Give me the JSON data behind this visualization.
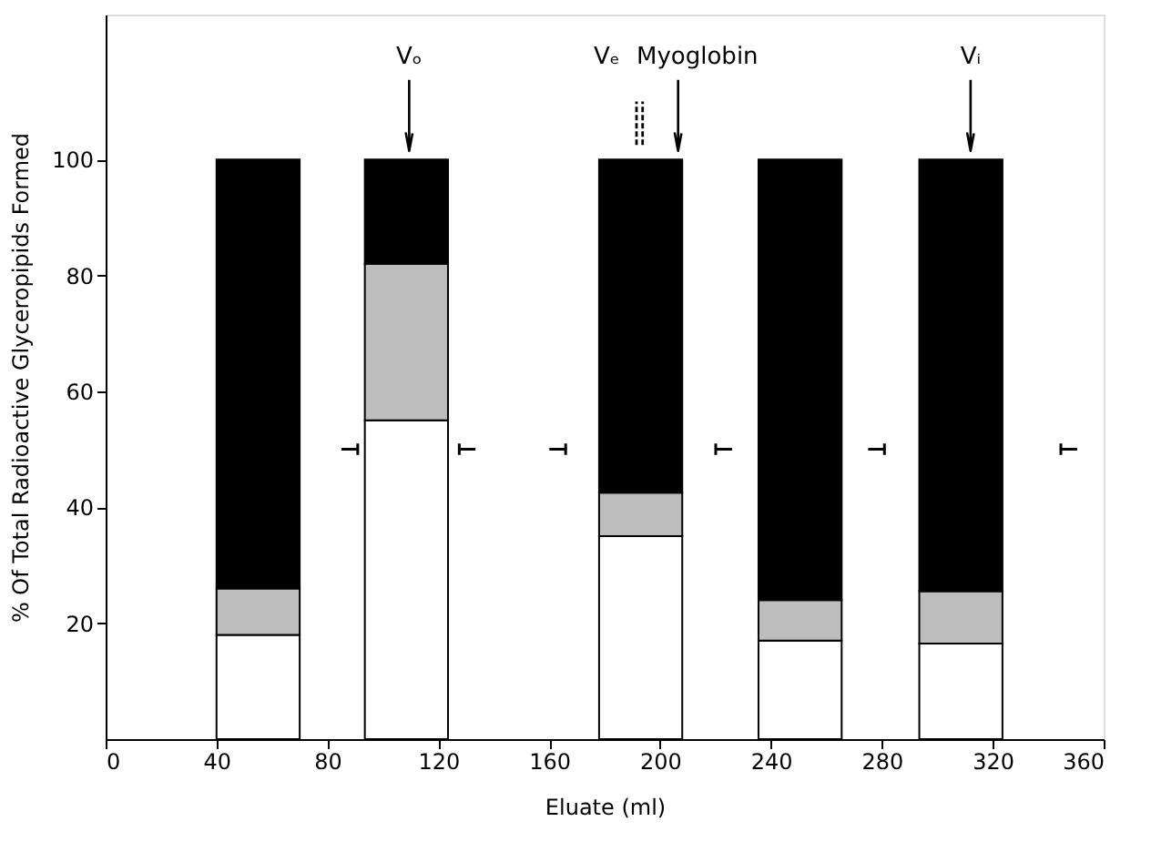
{
  "chart_data": {
    "type": "bar",
    "stacked": true,
    "xlabel": "Eluate (ml)",
    "ylabel": "% Of Total Radioactive Glyceropipids Formed",
    "x": [
      55,
      108.5,
      193,
      250.5,
      308.5
    ],
    "series": [
      {
        "color": "#ffffff",
        "values": [
          18,
          55,
          35,
          17,
          16.5
        ]
      },
      {
        "color": "#bdbdbd",
        "values": [
          8,
          27,
          7.5,
          7,
          9
        ]
      },
      {
        "color": "#000000",
        "values": [
          74,
          18,
          57.5,
          76,
          74.5
        ]
      },
      {
        "type": "scatter",
        "color": "#000000",
        "x": [
          88,
          130.5,
          163,
          223,
          278,
          347.5
        ],
        "values": [
          50,
          50,
          50,
          50,
          50,
          50
        ]
      }
    ],
    "xlim": [
      0,
      360
    ],
    "xticks": [
      0,
      40,
      80,
      120,
      160,
      200,
      240,
      280,
      320,
      360
    ],
    "ylim": [
      0,
      125
    ],
    "yticks": [
      20,
      40,
      60,
      80,
      100
    ],
    "grid": false,
    "ref_lines": [
      {
        "axis": "x",
        "value": 109.5,
        "label": "Vₒ",
        "line_style": "solid"
      },
      {
        "axis": "x",
        "value": 191.5,
        "label": "Vₑ",
        "line_style": "dashed"
      },
      {
        "axis": "x",
        "value": 206.5,
        "label": "Myoglobin",
        "line_style": "solid"
      },
      {
        "axis": "x",
        "value": 312,
        "label": "Vᵢ",
        "line_style": "solid"
      }
    ]
  }
}
